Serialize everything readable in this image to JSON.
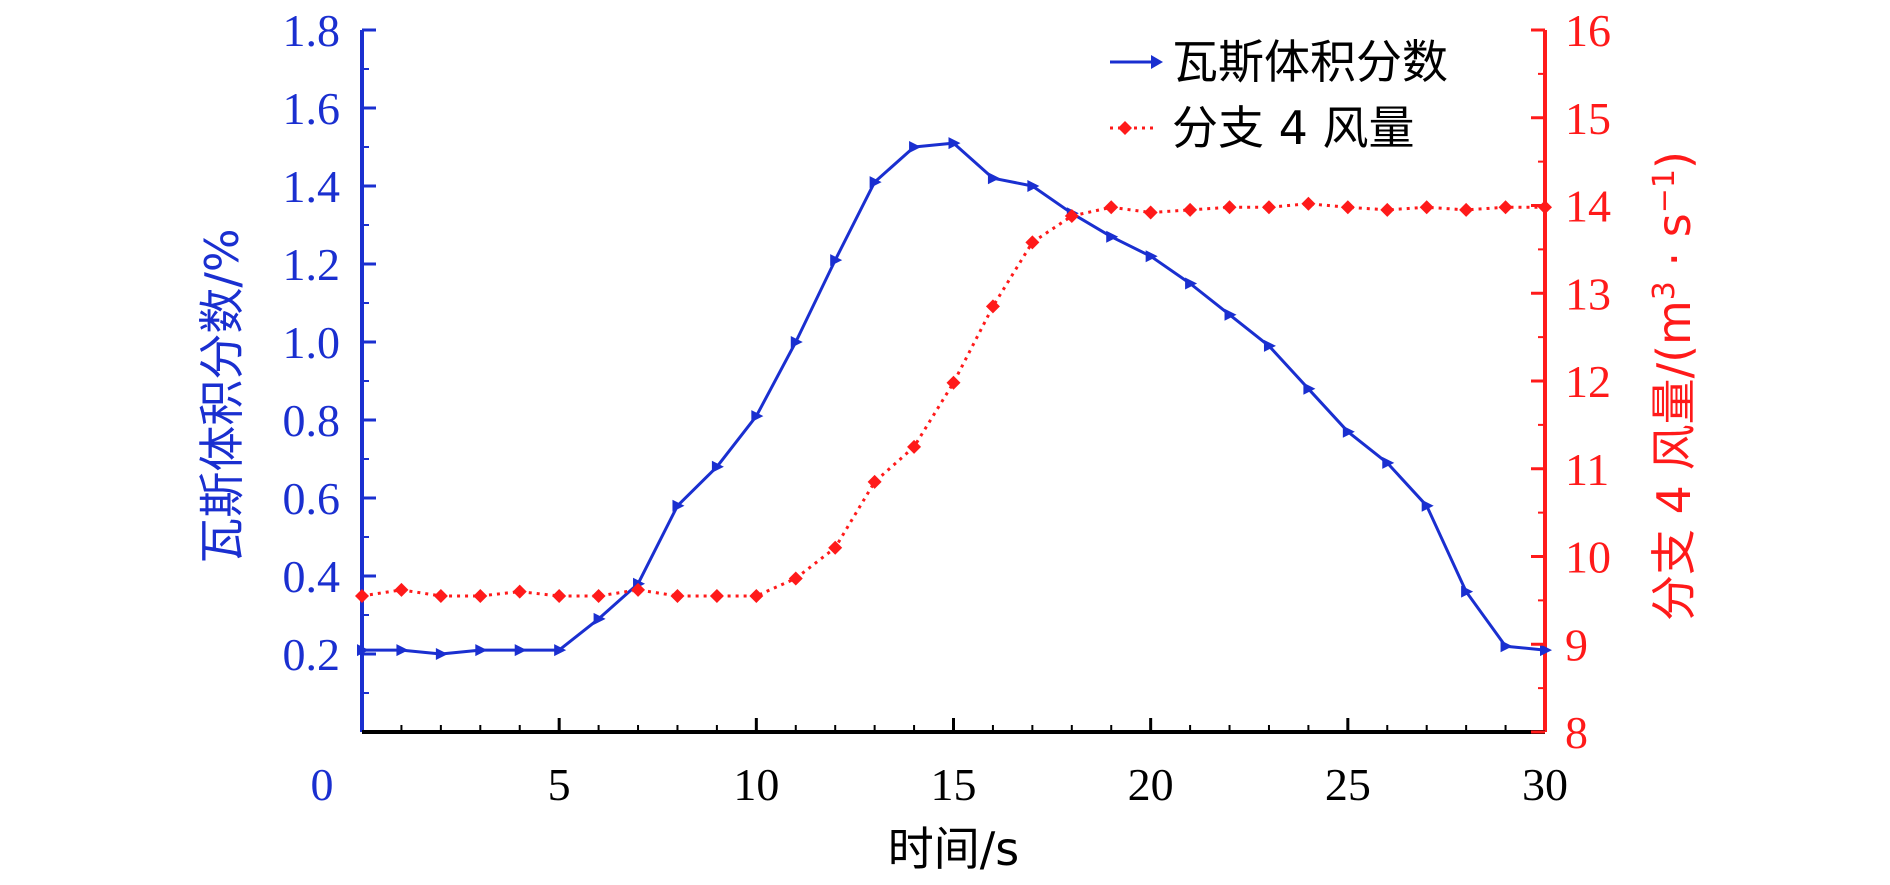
{
  "chart_data": {
    "type": "line",
    "xlabel": "时间/s",
    "ylabel_left": "瓦斯体积分数/%",
    "ylabel_right_parts": [
      "分支 4 风量/(m",
      "3",
      " · s",
      "−1",
      ")"
    ],
    "xlim": [
      0,
      30
    ],
    "x_ticks": [
      "0",
      "5",
      "10",
      "15",
      "20",
      "25",
      "30"
    ],
    "ylim_left": [
      0,
      1.8
    ],
    "y_left_ticks": [
      "0.2",
      "0.4",
      "0.6",
      "0.8",
      "1.0",
      "1.2",
      "1.4",
      "1.6",
      "1.8"
    ],
    "ylim_right": [
      8,
      16
    ],
    "y_right_ticks": [
      "8",
      "9",
      "10",
      "11",
      "12",
      "13",
      "14",
      "15",
      "16"
    ],
    "grid": false,
    "legend_position": "top-right",
    "colors": {
      "left_axis": "#1a2fd0",
      "right_axis": "#ff1a1a",
      "series_1": "#1a2fd0",
      "series_2": "#ff1a1a"
    },
    "series": [
      {
        "name": "瓦斯体积分数",
        "axis": "left",
        "marker": "triangle-right",
        "line": "solid",
        "x": [
          0,
          1,
          2,
          3,
          4,
          5,
          6,
          7,
          8,
          9,
          10,
          11,
          12,
          13,
          14,
          15,
          16,
          17,
          18,
          19,
          20,
          21,
          22,
          23,
          24,
          25,
          26,
          27,
          28,
          29,
          30
        ],
        "values": [
          0.21,
          0.21,
          0.2,
          0.21,
          0.21,
          0.21,
          0.29,
          0.38,
          0.58,
          0.68,
          0.81,
          1.0,
          1.21,
          1.41,
          1.5,
          1.51,
          1.42,
          1.4,
          1.33,
          1.27,
          1.22,
          1.15,
          1.07,
          0.99,
          0.88,
          0.77,
          0.69,
          0.58,
          0.36,
          0.22,
          0.21
        ]
      },
      {
        "name": "分支 4 风量",
        "axis": "right",
        "marker": "diamond",
        "line": "dotted",
        "x": [
          0,
          1,
          2,
          3,
          4,
          5,
          6,
          7,
          8,
          9,
          10,
          11,
          12,
          13,
          14,
          15,
          16,
          17,
          18,
          19,
          20,
          21,
          22,
          23,
          24,
          25,
          26,
          27,
          28,
          29,
          30
        ],
        "values": [
          9.55,
          9.62,
          9.55,
          9.55,
          9.6,
          9.55,
          9.55,
          9.62,
          9.55,
          9.55,
          9.55,
          9.75,
          10.1,
          10.85,
          11.25,
          11.98,
          12.85,
          13.58,
          13.88,
          13.98,
          13.92,
          13.95,
          13.98,
          13.98,
          14.02,
          13.98,
          13.95,
          13.98,
          13.95,
          13.98,
          13.98
        ]
      }
    ]
  }
}
